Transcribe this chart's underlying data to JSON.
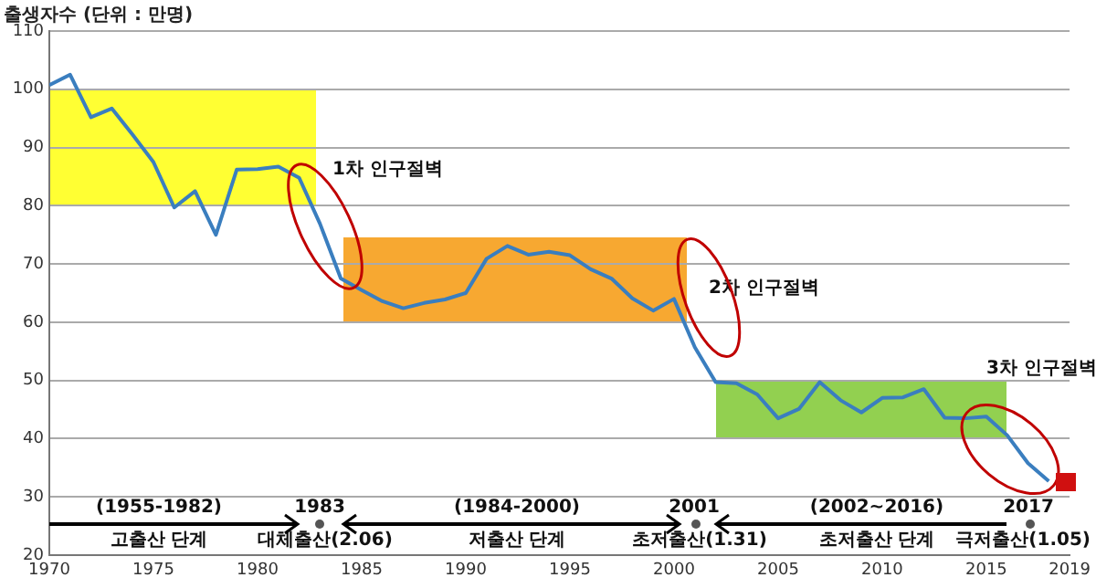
{
  "chart_data": {
    "type": "line",
    "ylabel": "출생자수 (단위 : 만명)",
    "x": [
      1970,
      1971,
      1972,
      1973,
      1974,
      1975,
      1976,
      1977,
      1978,
      1979,
      1980,
      1981,
      1982,
      1983,
      1984,
      1985,
      1986,
      1987,
      1988,
      1989,
      1990,
      1991,
      1992,
      1993,
      1994,
      1995,
      1996,
      1997,
      1998,
      1999,
      2000,
      2001,
      2002,
      2003,
      2004,
      2005,
      2006,
      2007,
      2008,
      2009,
      2010,
      2011,
      2012,
      2013,
      2014,
      2015,
      2016,
      2017,
      2018
    ],
    "series": [
      {
        "color": "#3a7ebf",
        "values": [
          100.7,
          102.5,
          95.2,
          96.7,
          92.2,
          87.5,
          79.7,
          82.5,
          75.0,
          86.2,
          86.3,
          86.7,
          84.8,
          76.9,
          67.5,
          65.5,
          63.6,
          62.4,
          63.3,
          63.9,
          65.0,
          70.9,
          73.1,
          71.6,
          72.1,
          71.5,
          69.1,
          67.5,
          64.1,
          62.0,
          64.0,
          55.7,
          49.7,
          49.5,
          47.6,
          43.5,
          45.1,
          49.7,
          46.6,
          44.5,
          47.0,
          47.1,
          48.5,
          43.6,
          43.5,
          43.8,
          40.6,
          35.8,
          32.7
        ]
      }
    ],
    "xlim": [
      1970,
      2019
    ],
    "xticks": [
      1970,
      1975,
      1980,
      1985,
      1990,
      1995,
      2000,
      2005,
      2010,
      2015,
      2019
    ],
    "ylim": [
      20,
      110
    ],
    "yticks": [
      20,
      30,
      40,
      50,
      60,
      70,
      80,
      90,
      100,
      110
    ],
    "grid": "y",
    "legend": false,
    "marker": "none",
    "annotations": [
      "1차 인구절벽",
      "2차 인구절벽",
      "3차 인구절벽",
      "(1955-1982)",
      "고출산 단계",
      "1983",
      "대체출산(2.06)",
      "(1984-2000)",
      "저출산 단계",
      "2001",
      "초저출산(1.31)",
      "(2002~2016)",
      "초저출산 단계",
      "2017",
      "극저출산(1.05)"
    ]
  }
}
